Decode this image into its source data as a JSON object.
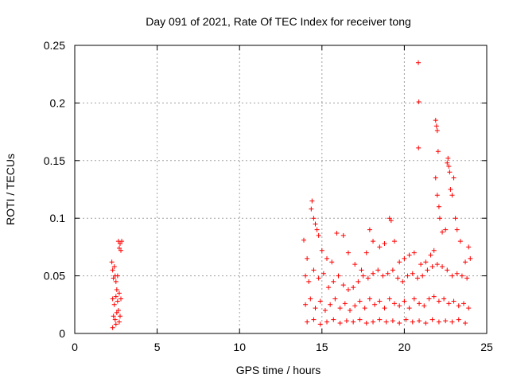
{
  "chart_data": {
    "type": "scatter",
    "title": "Day 091 of 2021, Rate Of TEC Index for receiver tong",
    "xlabel": "GPS time / hours",
    "ylabel": "ROTI / TECUs",
    "xlim": [
      0,
      25
    ],
    "ylim": [
      0,
      0.25
    ],
    "x_ticks": [
      0,
      5,
      10,
      15,
      20,
      25
    ],
    "x_tick_labels": [
      "0",
      "5",
      "10",
      "15",
      "20",
      "25"
    ],
    "y_ticks": [
      0,
      0.05,
      0.1,
      0.15,
      0.2,
      0.25
    ],
    "y_tick_labels": [
      "0",
      "0.05",
      "0.1",
      "0.15",
      "0.2",
      "0.25"
    ],
    "grid": true,
    "marker": "+",
    "series_color": "#ff0000",
    "series": [
      {
        "points": [
          [
            2.25,
            0.062
          ],
          [
            2.3,
            0.055
          ],
          [
            2.35,
            0.048
          ],
          [
            2.4,
            0.058
          ],
          [
            2.45,
            0.05
          ],
          [
            2.5,
            0.045
          ],
          [
            2.55,
            0.038
          ],
          [
            2.6,
            0.05
          ],
          [
            2.65,
            0.08
          ],
          [
            2.7,
            0.074
          ],
          [
            2.75,
            0.078
          ],
          [
            2.8,
            0.072
          ],
          [
            2.85,
            0.08
          ],
          [
            2.3,
            0.03
          ],
          [
            2.4,
            0.025
          ],
          [
            2.5,
            0.032
          ],
          [
            2.6,
            0.028
          ],
          [
            2.7,
            0.035
          ],
          [
            2.8,
            0.03
          ],
          [
            2.35,
            0.015
          ],
          [
            2.45,
            0.012
          ],
          [
            2.55,
            0.018
          ],
          [
            2.65,
            0.02
          ],
          [
            2.75,
            0.015
          ],
          [
            2.3,
            0.005
          ],
          [
            2.5,
            0.008
          ],
          [
            2.7,
            0.01
          ],
          [
            13.9,
            0.081
          ],
          [
            14.1,
            0.065
          ],
          [
            14.35,
            0.108
          ],
          [
            14.4,
            0.115
          ],
          [
            14.5,
            0.1
          ],
          [
            14.6,
            0.095
          ],
          [
            14.7,
            0.09
          ],
          [
            14.8,
            0.085
          ],
          [
            15.0,
            0.072
          ],
          [
            15.3,
            0.065
          ],
          [
            15.6,
            0.062
          ],
          [
            15.9,
            0.087
          ],
          [
            16.3,
            0.085
          ],
          [
            16.6,
            0.07
          ],
          [
            17.0,
            0.06
          ],
          [
            17.4,
            0.055
          ],
          [
            17.7,
            0.07
          ],
          [
            17.9,
            0.09
          ],
          [
            18.1,
            0.08
          ],
          [
            18.5,
            0.075
          ],
          [
            18.8,
            0.078
          ],
          [
            19.1,
            0.1
          ],
          [
            19.2,
            0.098
          ],
          [
            19.4,
            0.08
          ],
          [
            19.7,
            0.062
          ],
          [
            20.0,
            0.065
          ],
          [
            20.3,
            0.068
          ],
          [
            20.6,
            0.07
          ],
          [
            20.85,
            0.235
          ],
          [
            20.88,
            0.201
          ],
          [
            20.86,
            0.161
          ],
          [
            21.0,
            0.06
          ],
          [
            21.3,
            0.062
          ],
          [
            21.6,
            0.068
          ],
          [
            21.8,
            0.072
          ],
          [
            21.9,
            0.185
          ],
          [
            21.95,
            0.18
          ],
          [
            22.0,
            0.176
          ],
          [
            22.05,
            0.158
          ],
          [
            21.9,
            0.135
          ],
          [
            22.0,
            0.12
          ],
          [
            22.1,
            0.11
          ],
          [
            22.15,
            0.1
          ],
          [
            22.3,
            0.088
          ],
          [
            22.5,
            0.09
          ],
          [
            22.6,
            0.148
          ],
          [
            22.65,
            0.152
          ],
          [
            22.7,
            0.145
          ],
          [
            22.75,
            0.14
          ],
          [
            22.8,
            0.125
          ],
          [
            22.9,
            0.12
          ],
          [
            23.0,
            0.135
          ],
          [
            23.1,
            0.1
          ],
          [
            23.2,
            0.09
          ],
          [
            23.4,
            0.08
          ],
          [
            23.7,
            0.062
          ],
          [
            23.9,
            0.075
          ],
          [
            24.0,
            0.065
          ],
          [
            14.0,
            0.05
          ],
          [
            14.2,
            0.045
          ],
          [
            14.5,
            0.055
          ],
          [
            14.8,
            0.048
          ],
          [
            15.1,
            0.052
          ],
          [
            15.4,
            0.04
          ],
          [
            15.7,
            0.045
          ],
          [
            16.0,
            0.05
          ],
          [
            16.3,
            0.042
          ],
          [
            16.6,
            0.038
          ],
          [
            16.9,
            0.04
          ],
          [
            17.2,
            0.045
          ],
          [
            17.5,
            0.05
          ],
          [
            17.8,
            0.048
          ],
          [
            18.1,
            0.052
          ],
          [
            18.4,
            0.055
          ],
          [
            18.7,
            0.05
          ],
          [
            19.0,
            0.052
          ],
          [
            19.3,
            0.055
          ],
          [
            19.6,
            0.048
          ],
          [
            19.9,
            0.045
          ],
          [
            20.2,
            0.05
          ],
          [
            20.5,
            0.052
          ],
          [
            20.8,
            0.048
          ],
          [
            21.1,
            0.05
          ],
          [
            21.4,
            0.055
          ],
          [
            21.7,
            0.058
          ],
          [
            22.0,
            0.06
          ],
          [
            22.3,
            0.058
          ],
          [
            22.6,
            0.055
          ],
          [
            22.9,
            0.05
          ],
          [
            23.2,
            0.052
          ],
          [
            23.5,
            0.05
          ],
          [
            23.8,
            0.048
          ],
          [
            14.0,
            0.025
          ],
          [
            14.3,
            0.03
          ],
          [
            14.6,
            0.022
          ],
          [
            14.9,
            0.028
          ],
          [
            15.2,
            0.02
          ],
          [
            15.5,
            0.025
          ],
          [
            15.8,
            0.03
          ],
          [
            16.1,
            0.022
          ],
          [
            16.4,
            0.026
          ],
          [
            16.7,
            0.02
          ],
          [
            17.0,
            0.024
          ],
          [
            17.3,
            0.028
          ],
          [
            17.6,
            0.022
          ],
          [
            17.9,
            0.03
          ],
          [
            18.2,
            0.025
          ],
          [
            18.5,
            0.028
          ],
          [
            18.8,
            0.022
          ],
          [
            19.1,
            0.03
          ],
          [
            19.4,
            0.026
          ],
          [
            19.7,
            0.024
          ],
          [
            20.0,
            0.028
          ],
          [
            20.3,
            0.022
          ],
          [
            20.6,
            0.03
          ],
          [
            20.9,
            0.026
          ],
          [
            21.2,
            0.024
          ],
          [
            21.5,
            0.03
          ],
          [
            21.8,
            0.032
          ],
          [
            22.1,
            0.028
          ],
          [
            22.4,
            0.03
          ],
          [
            22.7,
            0.026
          ],
          [
            23.0,
            0.028
          ],
          [
            23.3,
            0.024
          ],
          [
            23.6,
            0.026
          ],
          [
            23.9,
            0.022
          ],
          [
            14.1,
            0.01
          ],
          [
            14.5,
            0.012
          ],
          [
            14.9,
            0.008
          ],
          [
            15.3,
            0.01
          ],
          [
            15.7,
            0.012
          ],
          [
            16.1,
            0.009
          ],
          [
            16.5,
            0.011
          ],
          [
            16.9,
            0.01
          ],
          [
            17.3,
            0.012
          ],
          [
            17.7,
            0.009
          ],
          [
            18.1,
            0.01
          ],
          [
            18.5,
            0.012
          ],
          [
            18.9,
            0.01
          ],
          [
            19.3,
            0.011
          ],
          [
            19.7,
            0.009
          ],
          [
            20.1,
            0.012
          ],
          [
            20.5,
            0.01
          ],
          [
            20.9,
            0.011
          ],
          [
            21.3,
            0.009
          ],
          [
            21.7,
            0.012
          ],
          [
            22.1,
            0.01
          ],
          [
            22.5,
            0.011
          ],
          [
            22.9,
            0.01
          ],
          [
            23.3,
            0.012
          ],
          [
            23.7,
            0.009
          ]
        ]
      }
    ]
  }
}
